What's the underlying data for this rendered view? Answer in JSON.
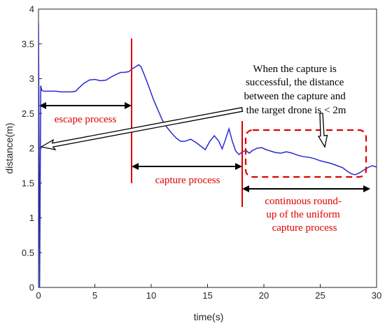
{
  "chart_data": {
    "type": "line",
    "xlabel": "time(s)",
    "ylabel": "distance(m)",
    "xlim": [
      0,
      30
    ],
    "ylim": [
      0,
      4
    ],
    "x_ticks": [
      0,
      5,
      10,
      15,
      20,
      25,
      30
    ],
    "y_ticks": [
      0,
      0.5,
      1,
      1.5,
      2,
      2.5,
      3,
      3.5,
      4
    ],
    "grid": false,
    "series": [
      {
        "color": "#2a2ad0",
        "x": [
          0.0,
          0.05,
          0.1,
          0.2,
          0.3,
          0.5,
          1.0,
          1.5,
          2.0,
          2.5,
          3.0,
          3.3,
          3.6,
          4.0,
          4.5,
          5.0,
          5.5,
          6.0,
          6.5,
          7.0,
          7.3,
          7.6,
          8.0,
          8.3,
          8.6,
          8.9,
          9.1,
          9.4,
          9.8,
          10.2,
          10.6,
          11.0,
          11.4,
          11.8,
          12.2,
          12.6,
          13.0,
          13.5,
          14.0,
          14.4,
          14.8,
          15.2,
          15.6,
          16.0,
          16.3,
          16.6,
          16.9,
          17.2,
          17.5,
          17.8,
          18.1,
          18.4,
          18.7,
          19.0,
          19.4,
          19.8,
          20.2,
          20.6,
          21.0,
          21.5,
          22.0,
          22.5,
          23.0,
          23.5,
          24.0,
          24.5,
          25.0,
          25.5,
          26.0,
          26.5,
          27.0,
          27.4,
          27.8,
          28.1,
          28.4,
          28.8,
          29.2,
          29.6,
          30.0
        ],
        "y": [
          3.8,
          2.2,
          0.0,
          2.9,
          2.83,
          2.82,
          2.82,
          2.82,
          2.81,
          2.81,
          2.81,
          2.82,
          2.87,
          2.93,
          2.98,
          2.99,
          2.97,
          2.98,
          3.03,
          3.07,
          3.09,
          3.09,
          3.1,
          3.14,
          3.17,
          3.2,
          3.17,
          3.05,
          2.88,
          2.7,
          2.55,
          2.4,
          2.3,
          2.22,
          2.15,
          2.1,
          2.1,
          2.13,
          2.08,
          2.03,
          1.98,
          2.1,
          2.18,
          2.1,
          1.99,
          2.13,
          2.28,
          2.1,
          1.96,
          1.91,
          1.95,
          1.97,
          1.93,
          1.97,
          2.0,
          2.01,
          1.98,
          1.96,
          1.94,
          1.93,
          1.95,
          1.93,
          1.9,
          1.88,
          1.87,
          1.85,
          1.82,
          1.8,
          1.78,
          1.75,
          1.72,
          1.67,
          1.63,
          1.62,
          1.64,
          1.68,
          1.72,
          1.75,
          1.73
        ]
      }
    ]
  },
  "annotations": {
    "escape": "escape process",
    "capture": "capture process",
    "roundup": [
      "continuous round-",
      "up of the uniform",
      "capture process"
    ],
    "success": [
      "When the capture is",
      "successful, the distance",
      "between the capture and",
      "the target drone is < 2m"
    ]
  },
  "colors": {
    "line": "#2a2ad0",
    "annotation_red": "#e00000",
    "annotation_black": "#000000"
  }
}
